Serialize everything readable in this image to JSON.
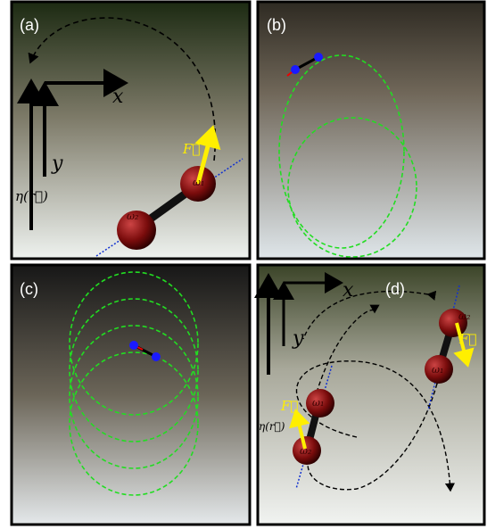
{
  "panels": [
    {
      "label": "(a)",
      "x_axis": "x",
      "y_axis": "y",
      "eta": "η(r⃗)",
      "force": "F⃗",
      "omega1": "ω₁",
      "omega2": "ω₂"
    },
    {
      "label": "(b)"
    },
    {
      "label": "(c)"
    },
    {
      "label": "(d)",
      "x_axis": "x",
      "y_axis": "y",
      "eta": "η(r⃗)",
      "force_left": "F⃗",
      "force_right": "F⃗",
      "omega1_left": "ω₁",
      "omega2_left": "ω₂",
      "omega1_right": "ω₁",
      "omega2_right": "ω₂"
    }
  ]
}
